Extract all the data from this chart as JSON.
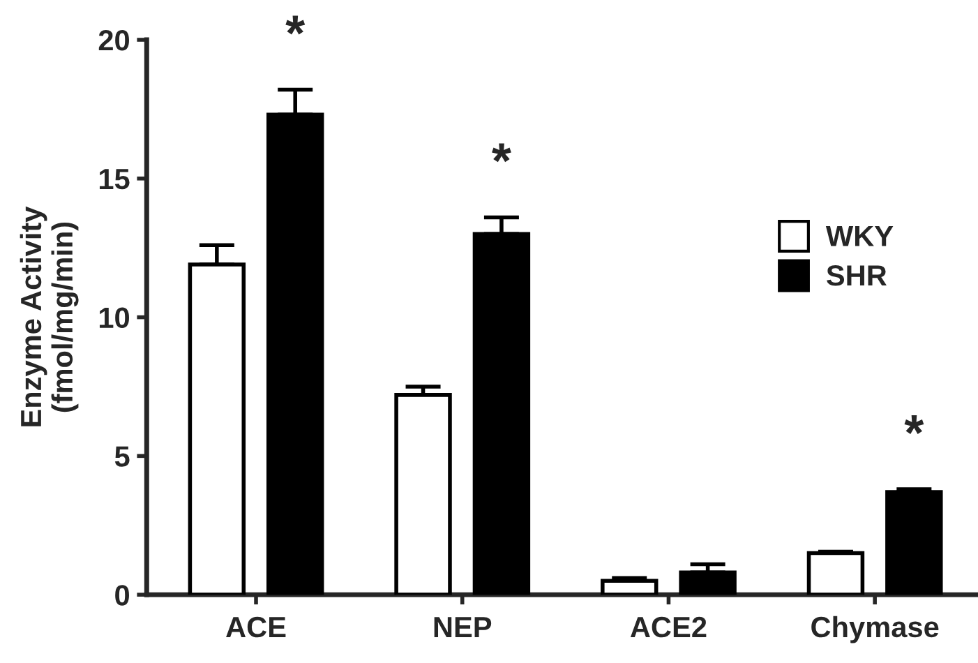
{
  "chart_data": {
    "type": "bar",
    "ylabel": "Enzyme Activity\n(fmol/mg/min)",
    "categories": [
      "ACE",
      "NEP",
      "ACE2",
      "Chymase"
    ],
    "series": [
      {
        "name": "WKY",
        "color": "#ffffff",
        "values": [
          11.9,
          7.2,
          0.5,
          1.5
        ],
        "errors": [
          [
            11.9,
            12.6
          ],
          [
            7.2,
            7.5
          ],
          [
            0.5,
            0.6
          ],
          [
            1.5,
            1.55
          ]
        ]
      },
      {
        "name": "SHR",
        "color": "#000000",
        "values": [
          17.3,
          13.0,
          0.8,
          3.7
        ],
        "errors": [
          [
            17.3,
            18.2
          ],
          [
            13.0,
            13.6
          ],
          [
            0.8,
            1.1
          ],
          [
            3.7,
            3.8
          ]
        ],
        "value_labels": [
          "*",
          "*",
          null,
          "*"
        ]
      }
    ],
    "ylim": [
      0,
      20
    ],
    "yticks": [
      0,
      5,
      10,
      15,
      20
    ],
    "grid": false,
    "legend": "top right"
  }
}
